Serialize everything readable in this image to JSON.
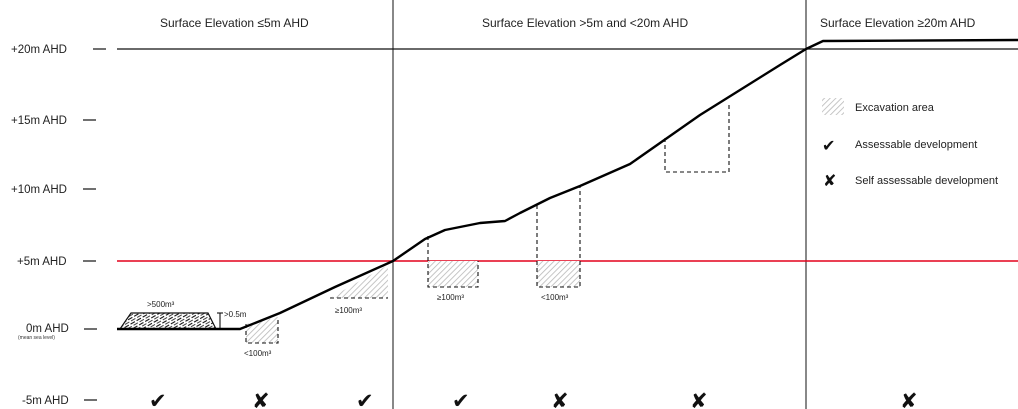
{
  "zones": {
    "low": "Surface Elevation ≤5m AHD",
    "mid": "Surface Elevation >5m and <20m AHD",
    "high": "Surface Elevation ≥20m AHD"
  },
  "levels": {
    "l20": "+20m AHD",
    "l15": "+15m AHD",
    "l10": "+10m AHD",
    "l5": "+5m AHD",
    "l0": "0m AHD",
    "l0_sub": "(mean sea level)",
    "lm5": "-5m AHD"
  },
  "annotations": {
    "fill_volume": ">500m³",
    "fill_height": ">0.5m",
    "exc1_volume": "<100m³",
    "exc2_volume": "≥100m³",
    "exc3_volume": "≥100m³",
    "exc4_volume": "<100m³"
  },
  "legend": {
    "excavation": "Excavation area",
    "assessable": "Assessable development",
    "self_assessable": "Self assessable development",
    "excavation_icon": "hatched-area-icon",
    "assessable_icon": "check-mark-icon",
    "self_assessable_icon": "cross-mark-icon"
  },
  "outcomes": {
    "m1": "✔",
    "m2": "✘",
    "m3": "✔",
    "m4": "✔",
    "m5": "✘",
    "m6": "✘",
    "m7": "✘"
  },
  "colors": {
    "ground": "#000000",
    "five_m_line": "#e3001b",
    "hatch": "#b8b8b8"
  }
}
